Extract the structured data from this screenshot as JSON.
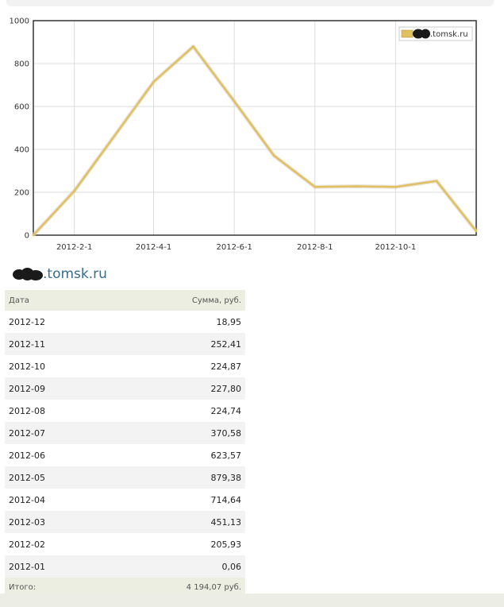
{
  "chart_data": {
    "type": "line",
    "x": [
      "2012-01-01",
      "2012-02-01",
      "2012-03-01",
      "2012-04-01",
      "2012-05-01",
      "2012-06-01",
      "2012-07-01",
      "2012-08-01",
      "2012-09-01",
      "2012-10-01",
      "2012-11-01",
      "2012-12-01"
    ],
    "series": [
      {
        "name": ".tomsk.ru",
        "values": [
          0.06,
          205.93,
          451.13,
          714.64,
          879.38,
          623.57,
          370.58,
          224.74,
          227.8,
          224.87,
          252.41,
          18.95
        ]
      }
    ],
    "xticks": [
      "2012-2-1",
      "2012-4-1",
      "2012-6-1",
      "2012-8-1",
      "2012-10-1"
    ],
    "ylim": [
      0,
      1000
    ],
    "yticks": [
      0,
      200,
      400,
      600,
      800,
      1000
    ],
    "grid": true,
    "legend_position": "top-right",
    "line_color": "#e0c060"
  },
  "site": {
    "title": ".tomsk.ru"
  },
  "table": {
    "headers": {
      "date": "Дата",
      "amount": "Сумма, руб."
    },
    "rows": [
      {
        "date": "2012-12",
        "amount": "18,95"
      },
      {
        "date": "2012-11",
        "amount": "252,41"
      },
      {
        "date": "2012-10",
        "amount": "224,87"
      },
      {
        "date": "2012-09",
        "amount": "227,80"
      },
      {
        "date": "2012-08",
        "amount": "224,74"
      },
      {
        "date": "2012-07",
        "amount": "370,58"
      },
      {
        "date": "2012-06",
        "amount": "623,57"
      },
      {
        "date": "2012-05",
        "amount": "879,38"
      },
      {
        "date": "2012-04",
        "amount": "714,64"
      },
      {
        "date": "2012-03",
        "amount": "451,13"
      },
      {
        "date": "2012-02",
        "amount": "205,93"
      },
      {
        "date": "2012-01",
        "amount": "0,06"
      }
    ],
    "total_label": "Итого:",
    "total_value": "4 194,07 руб."
  }
}
